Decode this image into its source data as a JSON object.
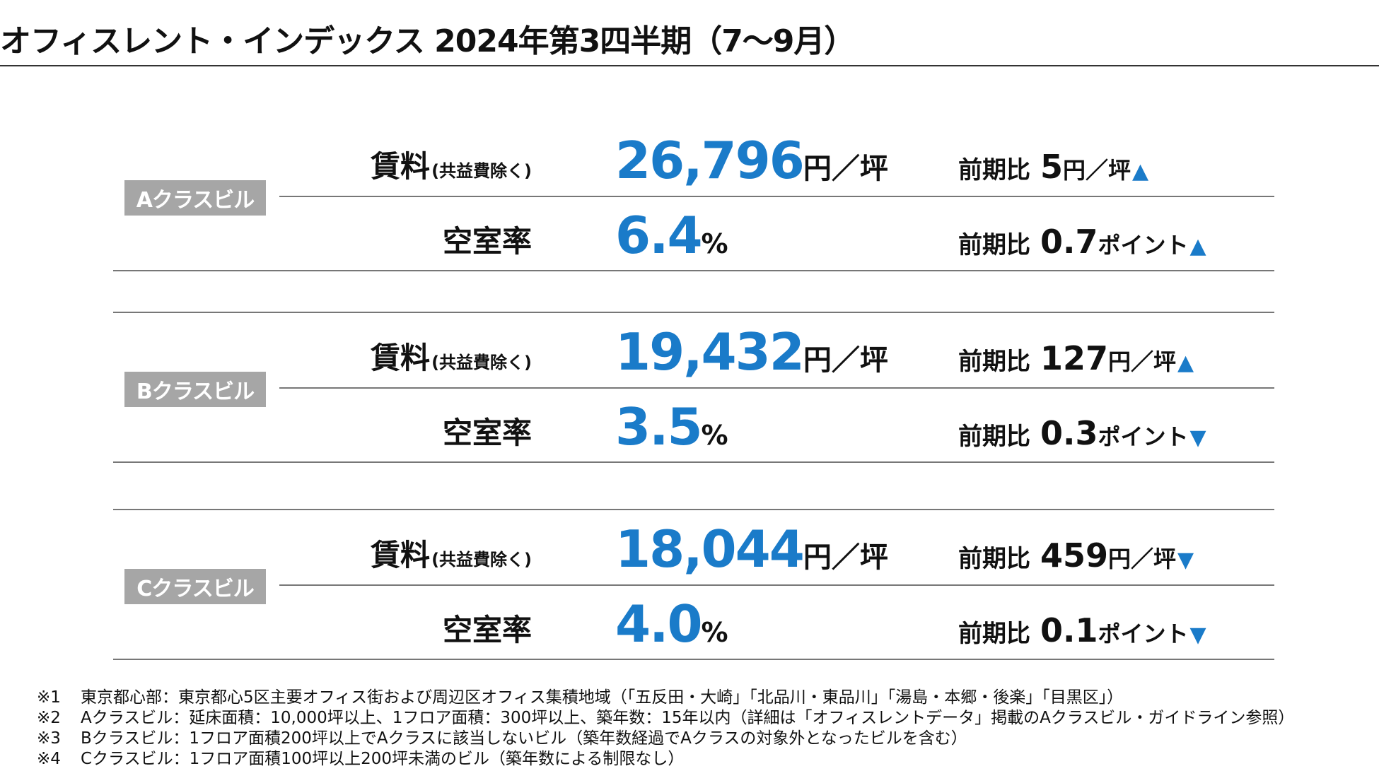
{
  "title": "オフィスレント・インデックス 2024年第3四半期（7〜9月）",
  "labels": {
    "rent": "賃料",
    "rent_sub": "(共益費除く)",
    "vacancy": "空室率",
    "compare": "前期比",
    "rent_unit": "円／坪",
    "vacancy_unit": "%",
    "rent_change_unit": "円／坪",
    "vacancy_change_unit": "ポイント"
  },
  "sections": [
    {
      "name": "Aクラスビル",
      "rent": "26,796",
      "rent_change": "5",
      "rent_arrow": "▲",
      "vacancy": "6.4",
      "vacancy_change": "0.7",
      "vacancy_arrow": "▲"
    },
    {
      "name": "Bクラスビル",
      "rent": "19,432",
      "rent_change": "127",
      "rent_arrow": "▲",
      "vacancy": "3.5",
      "vacancy_change": "0.3",
      "vacancy_arrow": "▼"
    },
    {
      "name": "Cクラスビル",
      "rent": "18,044",
      "rent_change": "459",
      "rent_arrow": "▼",
      "vacancy": "4.0",
      "vacancy_change": "0.1",
      "vacancy_arrow": "▼"
    }
  ],
  "notes": [
    {
      "mark": "※1",
      "text": "東京都心部：東京都心5区主要オフィス街および周辺区オフィス集積地域（「五反田・大崎」「北品川・東品川」「湯島・本郷・後楽」「目黒区」）"
    },
    {
      "mark": "※2",
      "text": "Aクラスビル：延床面積：10,000坪以上、1フロア面積：300坪以上、築年数：15年以内（詳細は「オフィスレントデータ」掲載のAクラスビル・ガイドライン参照）"
    },
    {
      "mark": "※3",
      "text": "Bクラスビル：1フロア面積200坪以上でAクラスに該当しないビル（築年数経過でAクラスの対象外となったビルを含む）"
    },
    {
      "mark": "※4",
      "text": "Cクラスビル：1フロア面積100坪以上200坪未満のビル（築年数による制限なし）"
    }
  ]
}
